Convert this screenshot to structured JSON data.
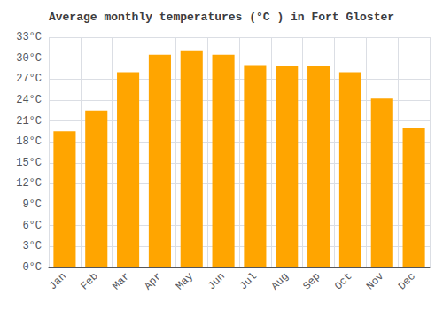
{
  "chart_data": {
    "type": "bar",
    "title": "Average monthly temperatures (°C ) in Fort Gloster",
    "categories": [
      "Jan",
      "Feb",
      "Mar",
      "Apr",
      "May",
      "Jun",
      "Jul",
      "Aug",
      "Sep",
      "Oct",
      "Nov",
      "Dec"
    ],
    "values": [
      19.5,
      22.5,
      28.0,
      30.5,
      31.0,
      30.5,
      29.0,
      28.8,
      28.8,
      28.0,
      24.2,
      20.0
    ],
    "color": "#FFA500",
    "ylim": [
      0,
      33
    ],
    "yticks": [
      {
        "value": 0,
        "label": "0°C"
      },
      {
        "value": 3,
        "label": "3°C"
      },
      {
        "value": 6,
        "label": "6°C"
      },
      {
        "value": 9,
        "label": "9°C"
      },
      {
        "value": 12,
        "label": "12°C"
      },
      {
        "value": 15,
        "label": "15°C"
      },
      {
        "value": 18,
        "label": "18°C"
      },
      {
        "value": 21,
        "label": "21°C"
      },
      {
        "value": 24,
        "label": "24°C"
      },
      {
        "value": 27,
        "label": "27°C"
      },
      {
        "value": 30,
        "label": "30°C"
      },
      {
        "value": 33,
        "label": "33°C"
      }
    ],
    "grid": true
  }
}
